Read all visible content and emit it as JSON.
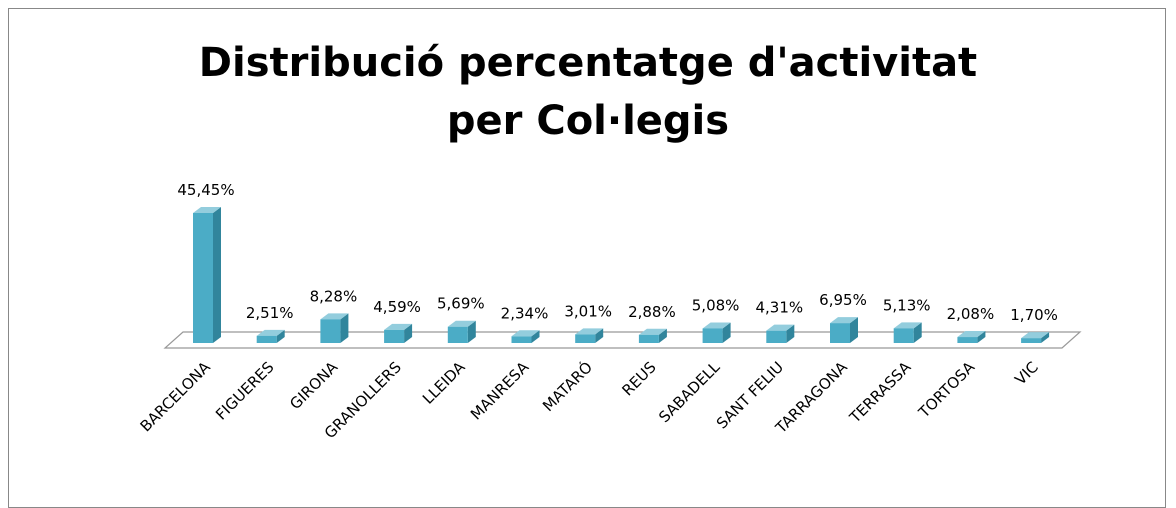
{
  "chart_data": {
    "type": "bar3d",
    "title": "Distribució percentatge d'activitat per Col·legis",
    "categories": [
      "BARCELONA",
      "FIGUERES",
      "GIRONA",
      "GRANOLLERS",
      "LLEIDA",
      "MANRESA",
      "MATARÓ",
      "REUS",
      "SABADELL",
      "SANT FELIU",
      "TARRAGONA",
      "TERRASSA",
      "TORTOSA",
      "VIC"
    ],
    "values": [
      45.45,
      2.51,
      8.28,
      4.59,
      5.69,
      2.34,
      3.01,
      2.88,
      5.08,
      4.31,
      6.95,
      5.13,
      2.08,
      1.7
    ],
    "value_labels": [
      "45,45%",
      "2,51%",
      "8,28%",
      "4,59%",
      "5,69%",
      "2,34%",
      "3,01%",
      "2,88%",
      "5,08%",
      "4,31%",
      "6,95%",
      "5,13%",
      "2,08%",
      "1,70%"
    ],
    "color": "#4bacc6"
  }
}
